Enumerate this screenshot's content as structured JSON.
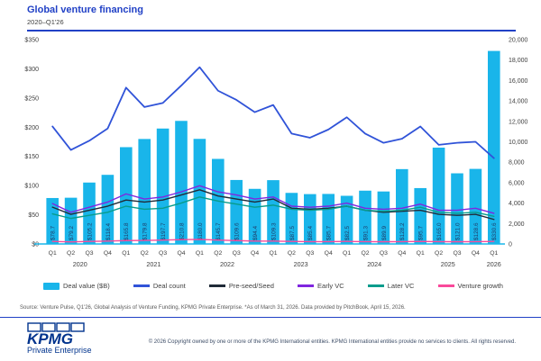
{
  "header": {
    "title": "Global venture financing",
    "subtitle": "2020–Q1'26"
  },
  "chart_data": {
    "type": "combo (bar + line)",
    "categories": [
      "Q1 2020",
      "Q2 2020",
      "Q3 2020",
      "Q4 2020",
      "Q1 2021",
      "Q2 2021",
      "Q3 2021",
      "Q4 2021",
      "Q1 2022",
      "Q2 2022",
      "Q3 2022",
      "Q4 2022",
      "Q1 2023",
      "Q2 2023",
      "Q3 2023",
      "Q4 2023",
      "Q1 2024",
      "Q2 2024",
      "Q3 2024",
      "Q4 2024",
      "Q1 2025",
      "Q2 2025",
      "Q3 2025",
      "Q4 2025",
      "Q1 2026"
    ],
    "left_axis": {
      "min": 0,
      "max": 350,
      "step": 50,
      "ticks": [
        "$350",
        "$300",
        "$250",
        "$200",
        "$150",
        "$100",
        "$50",
        "$0"
      ]
    },
    "right_axis": {
      "min": 0,
      "max": 20000,
      "step": 2000,
      "ticks": [
        "20,000",
        "18,000",
        "16,000",
        "14,000",
        "12,000",
        "10,000",
        "8,000",
        "6,000",
        "4,000",
        "2,000",
        "0"
      ]
    },
    "bar_series": {
      "name": "Deal value ($B)",
      "axis": "left",
      "color": "#19B5EA",
      "values": [
        78.7,
        79.2,
        105.2,
        118.4,
        165.8,
        179.8,
        197.7,
        210.8,
        180.0,
        145.7,
        109.6,
        94.4,
        109.3,
        87.5,
        85.4,
        85.7,
        82.5,
        91.3,
        89.9,
        128.2,
        95.7,
        165.0,
        121.0,
        128.6,
        330.6
      ],
      "labels": [
        "$78.7",
        "$79.2",
        "$105.2",
        "$118.4",
        "$165.8",
        "$179.8",
        "$197.7",
        "$210.8",
        "$180.0",
        "$145.7",
        "$109.6",
        "$94.4",
        "$109.3",
        "$87.5",
        "$85.4",
        "$85.7",
        "$82.5",
        "$91.3",
        "$89.9",
        "$128.2",
        "$95.7",
        "$165.0",
        "$121.0",
        "$128.6",
        "$330.6"
      ]
    },
    "line_series": [
      {
        "name": "Deal count",
        "axis": "right",
        "color": "#3053D8",
        "values": [
          11500,
          9200,
          10100,
          11300,
          15300,
          13400,
          13800,
          15500,
          17300,
          15000,
          14100,
          12900,
          13600,
          10800,
          10400,
          11200,
          12400,
          10800,
          9900,
          10300,
          11500,
          9700,
          9900,
          10000,
          8400
        ]
      },
      {
        "name": "Pre-seed/Seed",
        "axis": "right",
        "color": "#202B38",
        "values": [
          3600,
          2900,
          3300,
          3700,
          4300,
          4100,
          4300,
          4800,
          5300,
          4700,
          4400,
          4100,
          4400,
          3500,
          3400,
          3500,
          3700,
          3300,
          3100,
          3200,
          3300,
          2900,
          2800,
          2900,
          2400
        ]
      },
      {
        "name": "Early VC",
        "axis": "right",
        "color": "#8026DF",
        "values": [
          3950,
          3100,
          3600,
          4100,
          4900,
          4400,
          4600,
          5100,
          5700,
          5100,
          4800,
          4400,
          4600,
          3700,
          3600,
          3700,
          4000,
          3500,
          3400,
          3500,
          3900,
          3300,
          3300,
          3500,
          3000
        ]
      },
      {
        "name": "Later VC",
        "axis": "right",
        "color": "#089C8C",
        "values": [
          2950,
          2500,
          2800,
          3100,
          3700,
          3400,
          3500,
          4000,
          4600,
          4200,
          3900,
          3600,
          3800,
          3400,
          3300,
          3400,
          3700,
          3300,
          3200,
          3300,
          3600,
          3100,
          3000,
          3100,
          2700
        ]
      },
      {
        "name": "Venture growth",
        "axis": "right",
        "color": "#F9499A",
        "values": [
          250,
          200,
          250,
          280,
          330,
          350,
          380,
          420,
          450,
          380,
          330,
          280,
          280,
          250,
          230,
          230,
          250,
          230,
          220,
          230,
          250,
          230,
          220,
          230,
          250
        ]
      }
    ],
    "legend_position": "bottom",
    "grid": false,
    "bar_label_color": "#1F3864",
    "axis_label_color": "#404040"
  },
  "source": "Source: Venture Pulse, Q1'26, Global Analysis of Venture Funding, KPMG Private Enterprise. *As of March 31, 2026. Data provided by PitchBook, April 15, 2026.",
  "footer": {
    "logo": "KPMG",
    "logo_subtitle": "Private Enterprise",
    "copyright": "© 2026 Copyright owned by one or more of the KPMG International entities. KPMG International entities provide no services to clients. All rights reserved."
  }
}
